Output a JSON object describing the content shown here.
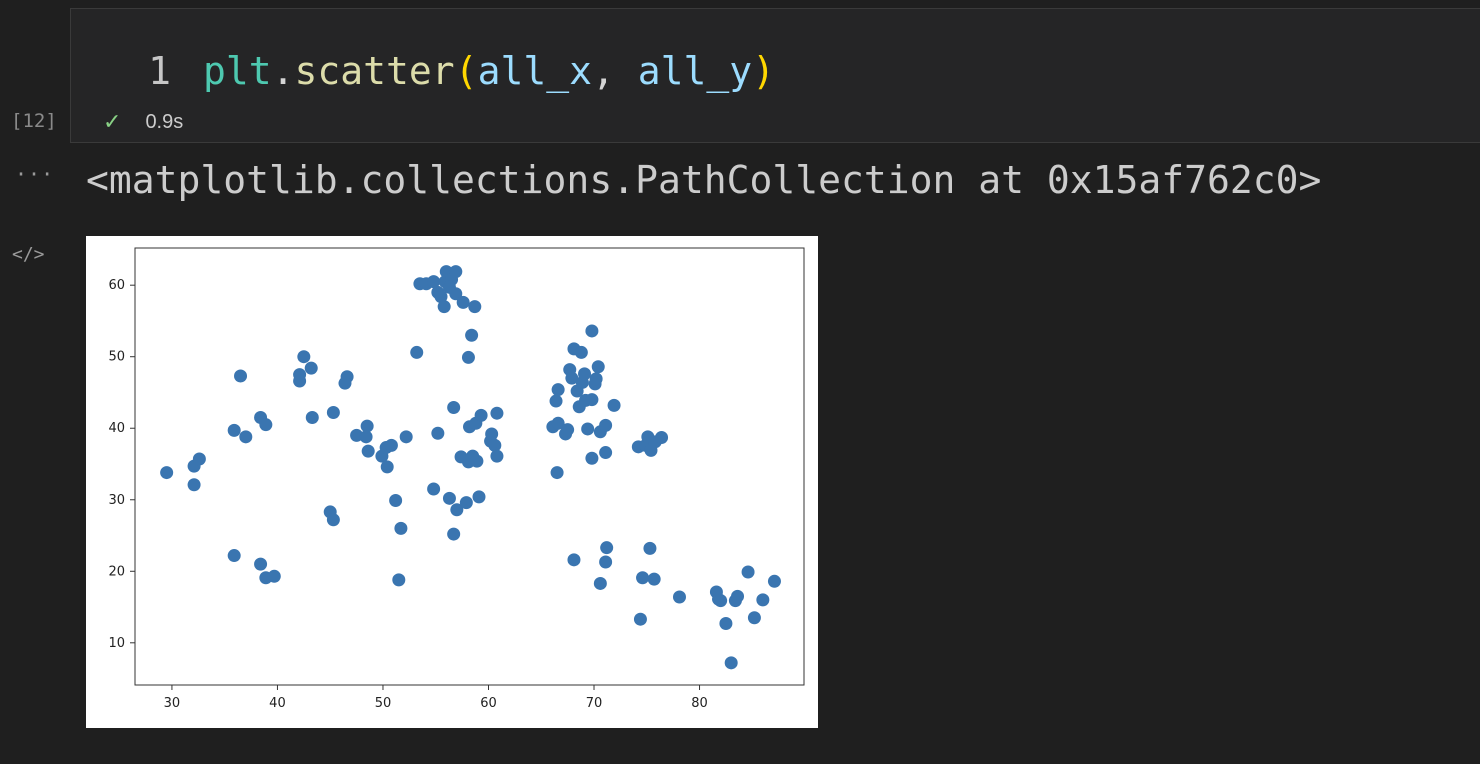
{
  "cell": {
    "execution_count": "[12]",
    "line_number": "1",
    "code_tokens": {
      "module": "plt",
      "dot": ".",
      "method": "scatter",
      "open_paren": "(",
      "arg1": "all_x",
      "comma": ", ",
      "arg2": "all_y",
      "close_paren": ")"
    },
    "status_icon": "check-icon",
    "duration": "0.9s"
  },
  "output": {
    "more_icon": "ellipsis-icon",
    "more_text": "···",
    "code_icon": "code-brackets-icon",
    "code_text": "</>",
    "text": "<matplotlib.collections.PathCollection at 0x15af762c0>"
  },
  "colors": {
    "marker": "#3a75b0"
  },
  "chart_data": {
    "type": "scatter",
    "title": "",
    "xlabel": "",
    "ylabel": "",
    "xlim": [
      26.5,
      89.9
    ],
    "ylim": [
      4.1,
      65.2
    ],
    "xticks": [
      30,
      40,
      50,
      60,
      70,
      80
    ],
    "yticks": [
      10,
      20,
      30,
      40,
      50,
      60
    ],
    "grid": false,
    "points": [
      [
        29.5,
        33.8
      ],
      [
        32.1,
        34.7
      ],
      [
        32.6,
        35.7
      ],
      [
        32.1,
        32.1
      ],
      [
        35.9,
        39.7
      ],
      [
        36.5,
        47.3
      ],
      [
        37.0,
        38.8
      ],
      [
        38.4,
        41.5
      ],
      [
        38.9,
        40.5
      ],
      [
        35.9,
        22.2
      ],
      [
        38.4,
        21.0
      ],
      [
        38.9,
        19.1
      ],
      [
        39.7,
        19.3
      ],
      [
        42.1,
        47.5
      ],
      [
        42.1,
        46.6
      ],
      [
        42.5,
        50.0
      ],
      [
        43.2,
        48.4
      ],
      [
        43.3,
        41.5
      ],
      [
        45.3,
        42.2
      ],
      [
        45.0,
        28.3
      ],
      [
        45.3,
        27.2
      ],
      [
        46.6,
        47.2
      ],
      [
        46.4,
        46.3
      ],
      [
        47.5,
        39.0
      ],
      [
        48.4,
        38.8
      ],
      [
        48.5,
        40.3
      ],
      [
        48.6,
        36.8
      ],
      [
        49.9,
        36.1
      ],
      [
        50.3,
        37.3
      ],
      [
        50.4,
        34.6
      ],
      [
        50.8,
        37.6
      ],
      [
        52.2,
        38.8
      ],
      [
        51.2,
        29.9
      ],
      [
        51.7,
        26.0
      ],
      [
        51.5,
        18.8
      ],
      [
        53.2,
        50.6
      ],
      [
        53.5,
        60.2
      ],
      [
        54.1,
        60.2
      ],
      [
        54.8,
        60.5
      ],
      [
        55.2,
        59.0
      ],
      [
        55.5,
        58.4
      ],
      [
        55.9,
        60.5
      ],
      [
        56.0,
        61.9
      ],
      [
        56.5,
        60.8
      ],
      [
        56.9,
        61.9
      ],
      [
        56.3,
        59.7
      ],
      [
        56.9,
        58.8
      ],
      [
        55.8,
        57.0
      ],
      [
        57.6,
        57.6
      ],
      [
        58.7,
        57.0
      ],
      [
        58.4,
        53.0
      ],
      [
        58.1,
        49.9
      ],
      [
        54.8,
        31.5
      ],
      [
        55.2,
        39.3
      ],
      [
        56.3,
        30.2
      ],
      [
        56.7,
        42.9
      ],
      [
        57.0,
        28.6
      ],
      [
        56.7,
        25.2
      ],
      [
        57.4,
        36.0
      ],
      [
        57.9,
        29.6
      ],
      [
        58.2,
        40.2
      ],
      [
        58.8,
        40.7
      ],
      [
        58.1,
        35.3
      ],
      [
        58.5,
        36.1
      ],
      [
        58.9,
        35.4
      ],
      [
        59.3,
        41.8
      ],
      [
        59.1,
        30.4
      ],
      [
        60.2,
        38.2
      ],
      [
        60.3,
        39.2
      ],
      [
        60.6,
        37.6
      ],
      [
        60.8,
        42.1
      ],
      [
        60.8,
        36.1
      ],
      [
        66.4,
        43.8
      ],
      [
        66.6,
        45.4
      ],
      [
        66.1,
        40.2
      ],
      [
        66.6,
        40.7
      ],
      [
        67.3,
        39.2
      ],
      [
        67.5,
        39.8
      ],
      [
        66.5,
        33.8
      ],
      [
        67.7,
        48.2
      ],
      [
        67.9,
        47.0
      ],
      [
        68.1,
        51.1
      ],
      [
        68.4,
        45.2
      ],
      [
        68.6,
        43.0
      ],
      [
        68.9,
        46.4
      ],
      [
        68.8,
        50.6
      ],
      [
        69.1,
        47.6
      ],
      [
        69.2,
        43.9
      ],
      [
        69.4,
        39.9
      ],
      [
        69.8,
        53.6
      ],
      [
        69.8,
        44.0
      ],
      [
        70.1,
        46.2
      ],
      [
        70.2,
        46.9
      ],
      [
        70.4,
        48.6
      ],
      [
        70.6,
        39.5
      ],
      [
        71.1,
        40.4
      ],
      [
        71.1,
        36.6
      ],
      [
        71.9,
        43.2
      ],
      [
        69.8,
        35.8
      ],
      [
        68.1,
        21.6
      ],
      [
        71.2,
        23.3
      ],
      [
        71.1,
        21.3
      ],
      [
        70.6,
        18.3
      ],
      [
        74.2,
        37.4
      ],
      [
        74.9,
        37.6
      ],
      [
        75.1,
        38.8
      ],
      [
        75.4,
        36.9
      ],
      [
        75.8,
        38.1
      ],
      [
        76.4,
        38.7
      ],
      [
        74.4,
        13.3
      ],
      [
        74.6,
        19.1
      ],
      [
        75.3,
        23.2
      ],
      [
        75.7,
        18.9
      ],
      [
        78.1,
        16.4
      ],
      [
        81.6,
        17.1
      ],
      [
        81.8,
        16.1
      ],
      [
        82.0,
        15.9
      ],
      [
        82.5,
        12.7
      ],
      [
        83.0,
        7.2
      ],
      [
        83.4,
        15.9
      ],
      [
        83.6,
        16.5
      ],
      [
        84.6,
        19.9
      ],
      [
        85.2,
        13.5
      ],
      [
        86.0,
        16.0
      ],
      [
        87.1,
        18.6
      ]
    ]
  }
}
